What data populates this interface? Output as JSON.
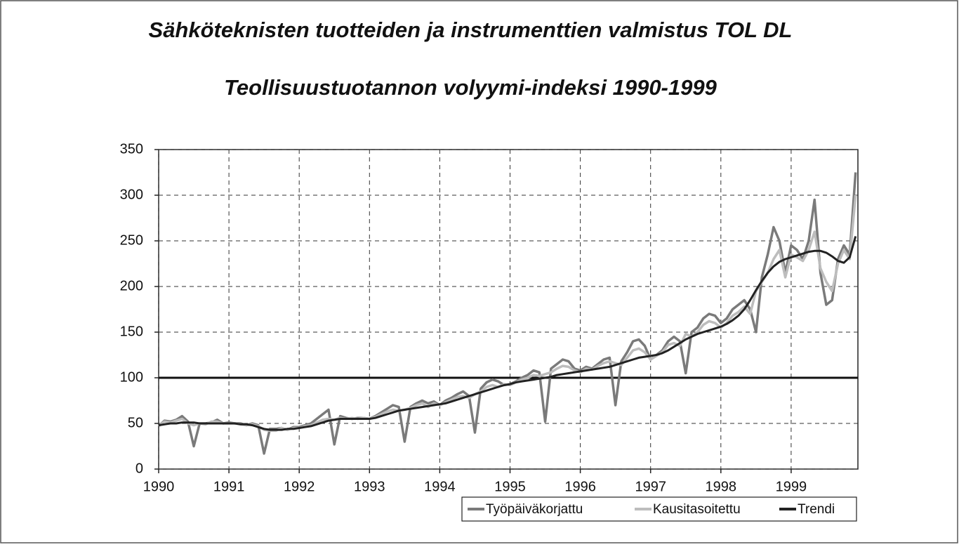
{
  "chart_data": {
    "type": "line",
    "title": "Sähköteknisten tuotteiden ja instrumenttien valmistus TOL DL",
    "subtitle": "Teollisuustuotannon volyymi-indeksi 1990-1999",
    "x": [
      1990.0,
      1990.083,
      1990.167,
      1990.25,
      1990.333,
      1990.417,
      1990.5,
      1990.583,
      1990.667,
      1990.75,
      1990.833,
      1990.917,
      1991.0,
      1991.083,
      1991.167,
      1991.25,
      1991.333,
      1991.417,
      1991.5,
      1991.583,
      1991.667,
      1991.75,
      1991.833,
      1991.917,
      1992.0,
      1992.083,
      1992.167,
      1992.25,
      1992.333,
      1992.417,
      1992.5,
      1992.583,
      1992.667,
      1992.75,
      1992.833,
      1992.917,
      1993.0,
      1993.083,
      1993.167,
      1993.25,
      1993.333,
      1993.417,
      1993.5,
      1993.583,
      1993.667,
      1993.75,
      1993.833,
      1993.917,
      1994.0,
      1994.083,
      1994.167,
      1994.25,
      1994.333,
      1994.417,
      1994.5,
      1994.583,
      1994.667,
      1994.75,
      1994.833,
      1994.917,
      1995.0,
      1995.083,
      1995.167,
      1995.25,
      1995.333,
      1995.417,
      1995.5,
      1995.583,
      1995.667,
      1995.75,
      1995.833,
      1995.917,
      1996.0,
      1996.083,
      1996.167,
      1996.25,
      1996.333,
      1996.417,
      1996.5,
      1996.583,
      1996.667,
      1996.75,
      1996.833,
      1996.917,
      1997.0,
      1997.083,
      1997.167,
      1997.25,
      1997.333,
      1997.417,
      1997.5,
      1997.583,
      1997.667,
      1997.75,
      1997.833,
      1997.917,
      1998.0,
      1998.083,
      1998.167,
      1998.25,
      1998.333,
      1998.417,
      1998.5,
      1998.583,
      1998.667,
      1998.75,
      1998.833,
      1998.917,
      1999.0,
      1999.083,
      1999.167,
      1999.25,
      1999.333,
      1999.417,
      1999.5,
      1999.583,
      1999.667,
      1999.75,
      1999.833,
      1999.917
    ],
    "series": [
      {
        "name": "Työpäiväkorjattu",
        "color": "#7a7a7a",
        "values": [
          47,
          53,
          52,
          54,
          58,
          52,
          25,
          50,
          50,
          51,
          54,
          50,
          51,
          50,
          50,
          48,
          50,
          48,
          17,
          44,
          44,
          45,
          43,
          46,
          46,
          48,
          50,
          55,
          60,
          65,
          27,
          58,
          56,
          55,
          56,
          56,
          55,
          58,
          62,
          66,
          70,
          68,
          30,
          68,
          72,
          75,
          72,
          74,
          70,
          75,
          78,
          82,
          85,
          80,
          40,
          88,
          95,
          98,
          96,
          92,
          93,
          96,
          100,
          103,
          108,
          106,
          52,
          110,
          115,
          120,
          118,
          110,
          108,
          112,
          110,
          115,
          120,
          122,
          70,
          118,
          128,
          140,
          142,
          135,
          120,
          125,
          130,
          140,
          145,
          140,
          105,
          150,
          155,
          165,
          170,
          168,
          160,
          165,
          175,
          180,
          185,
          175,
          150,
          210,
          235,
          265,
          250,
          215,
          245,
          240,
          230,
          250,
          295,
          215,
          180,
          185,
          230,
          245,
          235,
          325
        ]
      },
      {
        "name": "Kausitasoitettu",
        "color": "#bdbdbd",
        "values": [
          47,
          52,
          51,
          53,
          55,
          50,
          48,
          50,
          49,
          52,
          52,
          50,
          50,
          50,
          49,
          48,
          49,
          47,
          43,
          42,
          42,
          45,
          43,
          45,
          45,
          47,
          48,
          51,
          54,
          55,
          54,
          56,
          55,
          56,
          55,
          56,
          55,
          57,
          60,
          63,
          65,
          64,
          65,
          67,
          70,
          72,
          68,
          72,
          70,
          73,
          76,
          79,
          80,
          78,
          82,
          85,
          90,
          92,
          90,
          93,
          92,
          95,
          98,
          100,
          103,
          102,
          104,
          106,
          110,
          113,
          112,
          108,
          106,
          110,
          109,
          113,
          116,
          118,
          116,
          114,
          122,
          130,
          132,
          128,
          120,
          124,
          128,
          136,
          138,
          135,
          148,
          145,
          150,
          158,
          162,
          160,
          155,
          160,
          168,
          172,
          178,
          170,
          195,
          205,
          215,
          230,
          240,
          210,
          235,
          232,
          228,
          240,
          260,
          220,
          205,
          195,
          225,
          240,
          230,
          300
        ]
      },
      {
        "name": "Trendi",
        "color": "#222222",
        "values": [
          48,
          49,
          50,
          50,
          51,
          51,
          51,
          50,
          50,
          50,
          50,
          50,
          50,
          50,
          49,
          49,
          48,
          46,
          44,
          43,
          43,
          43,
          44,
          44,
          45,
          46,
          47,
          49,
          51,
          53,
          54,
          55,
          55,
          55,
          55,
          55,
          55,
          56,
          58,
          60,
          62,
          64,
          65,
          66,
          67,
          68,
          69,
          70,
          71,
          72,
          74,
          76,
          78,
          80,
          82,
          84,
          86,
          88,
          90,
          92,
          93,
          95,
          96,
          97,
          98,
          99,
          100,
          101,
          103,
          104,
          105,
          106,
          107,
          108,
          109,
          110,
          111,
          112,
          114,
          116,
          118,
          120,
          122,
          123,
          124,
          125,
          127,
          130,
          134,
          138,
          142,
          145,
          148,
          150,
          152,
          154,
          156,
          159,
          163,
          168,
          175,
          185,
          196,
          206,
          215,
          222,
          227,
          230,
          232,
          234,
          236,
          238,
          239,
          239,
          237,
          233,
          228,
          226,
          232,
          255
        ]
      }
    ],
    "reference_line": 100,
    "xlim": [
      1990,
      1999.95
    ],
    "xticks": [
      1990,
      1991,
      1992,
      1993,
      1994,
      1995,
      1996,
      1997,
      1998,
      1999
    ],
    "ylim": [
      0,
      350
    ],
    "yticks": [
      0,
      50,
      100,
      150,
      200,
      250,
      300,
      350
    ],
    "grid": true,
    "legend": "bottom-right"
  }
}
